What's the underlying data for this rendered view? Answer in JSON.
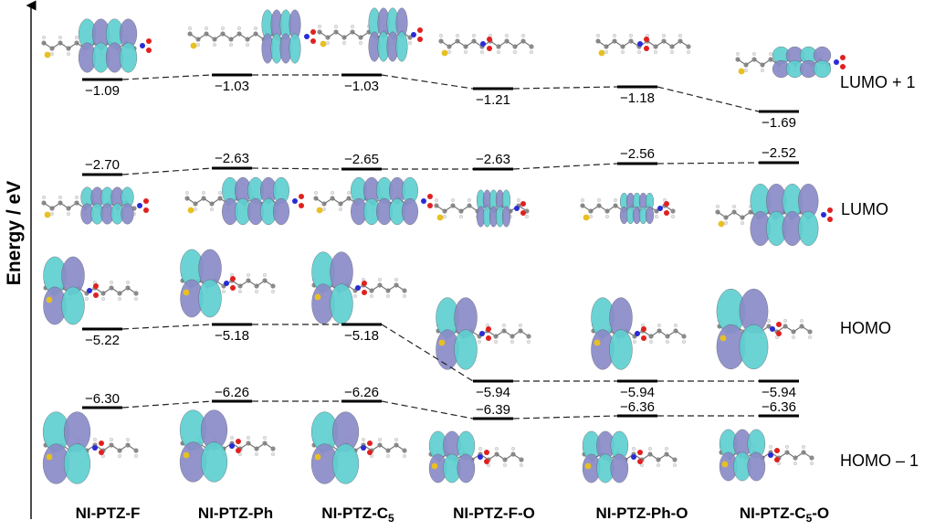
{
  "axis": {
    "ylabel": "Energy / eV"
  },
  "orbital_labels": {
    "lumo1": "LUMO + 1",
    "lumo": "LUMO",
    "homo": "HOMO",
    "homo1": "HOMO – 1"
  },
  "molecules": [
    {
      "base": "NI-PTZ-F",
      "sub": "",
      "tail": ""
    },
    {
      "base": "NI-PTZ-Ph",
      "sub": "",
      "tail": ""
    },
    {
      "base": "NI-PTZ-C",
      "sub": "5",
      "tail": ""
    },
    {
      "base": "NI-PTZ-F-O",
      "sub": "",
      "tail": ""
    },
    {
      "base": "NI-PTZ-Ph-O",
      "sub": "",
      "tail": ""
    },
    {
      "base": "NI-PTZ-C",
      "sub": "5",
      "tail": "-O"
    }
  ],
  "energies": {
    "lumo1": [
      "−1.09",
      "−1.03",
      "−1.03",
      "−1.21",
      "−1.18",
      "−1.69"
    ],
    "lumo": [
      "−2.70",
      "−2.63",
      "−2.65",
      "−2.63",
      "−2.56",
      "−2.52"
    ],
    "homo": [
      "−5.22",
      "−5.18",
      "−5.18",
      "−5.94",
      "−5.94",
      "−5.94"
    ],
    "homo1": [
      "−6.30",
      "−6.26",
      "−6.26",
      "−6.39",
      "−6.36",
      "−6.36"
    ]
  },
  "colors": {
    "lobe_cyan": "#5fd0d0",
    "lobe_purple": "#8a8cc8",
    "carbon": "#8c8c8c",
    "hydrogen": "#e6e6e6",
    "nitrogen": "#2a2ad6",
    "oxygen": "#e02020",
    "sulfur": "#e8c020",
    "fluorine": "#6fe0e0"
  }
}
